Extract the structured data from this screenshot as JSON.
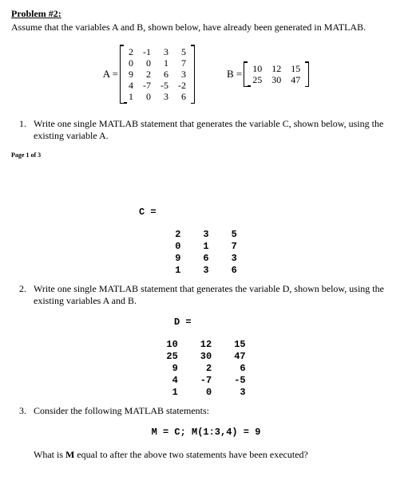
{
  "problem_title": "Problem #2:",
  "intro": "Assume that the variables A and B, shown below,  have already been generated in MATLAB.",
  "matrix_a": {
    "label": "A =",
    "rows": [
      [
        "2",
        "-1",
        "3",
        "5"
      ],
      [
        "0",
        "0",
        "1",
        "7"
      ],
      [
        "9",
        "2",
        "6",
        "3"
      ],
      [
        "4",
        "-7",
        "-5",
        "-2"
      ],
      [
        "1",
        "0",
        "3",
        "6"
      ]
    ]
  },
  "matrix_b": {
    "label": "B =",
    "rows": [
      [
        "10",
        "12",
        "15"
      ],
      [
        "25",
        "30",
        "47"
      ]
    ]
  },
  "q1": {
    "num": "1.",
    "text": "Write one single MATLAB statement that generates the variable C, shown below, using the existing variable A."
  },
  "page_label": "Page 1 of 3",
  "c_label": "C  =",
  "matrix_c": {
    "rows": [
      [
        "2",
        "3",
        "5"
      ],
      [
        "0",
        "1",
        "7"
      ],
      [
        "9",
        "6",
        "3"
      ],
      [
        "1",
        "3",
        "6"
      ]
    ]
  },
  "q2": {
    "num": "2.",
    "text": "Write one single MATLAB statement that generates the variable D, shown below, using the existing variables A and B."
  },
  "d_label": "D  =",
  "matrix_d": {
    "rows": [
      [
        "10",
        "12",
        "15"
      ],
      [
        "25",
        "30",
        "47"
      ],
      [
        "9",
        "2",
        "6"
      ],
      [
        "4",
        "-7",
        "-5"
      ],
      [
        "1",
        "0",
        "3"
      ]
    ]
  },
  "q3": {
    "num": "3.",
    "text": "Consider the following MATLAB statements:"
  },
  "statement": "M = C; M(1:3,4) = 9",
  "final": "What is M equal to after the above two statements have been executed?",
  "final_prefix": "What is ",
  "final_bold": "M",
  "final_suffix": " equal to after the above two statements have been executed?"
}
